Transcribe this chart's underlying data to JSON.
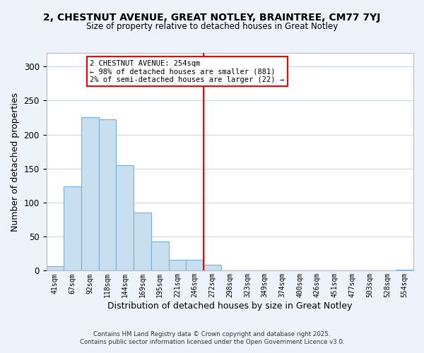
{
  "title_line1": "2, CHESTNUT AVENUE, GREAT NOTLEY, BRAINTREE, CM77 7YJ",
  "title_line2": "Size of property relative to detached houses in Great Notley",
  "xlabel": "Distribution of detached houses by size in Great Notley",
  "ylabel": "Number of detached properties",
  "bin_labels": [
    "41sqm",
    "67sqm",
    "92sqm",
    "118sqm",
    "144sqm",
    "169sqm",
    "195sqm",
    "221sqm",
    "246sqm",
    "272sqm",
    "298sqm",
    "323sqm",
    "349sqm",
    "374sqm",
    "400sqm",
    "426sqm",
    "451sqm",
    "477sqm",
    "503sqm",
    "528sqm",
    "554sqm"
  ],
  "bar_heights": [
    7,
    124,
    226,
    222,
    155,
    86,
    43,
    16,
    16,
    9,
    0,
    0,
    0,
    0,
    0,
    0,
    0,
    0,
    0,
    0,
    1
  ],
  "bar_color": "#c8dff0",
  "bar_edge_color": "#7bafd4",
  "vline_x": 8.5,
  "vline_color": "red",
  "annotation_title": "2 CHESTNUT AVENUE: 254sqm",
  "annotation_line2": "← 98% of detached houses are smaller (881)",
  "annotation_line3": "2% of semi-detached houses are larger (22) →",
  "ylim": [
    0,
    320
  ],
  "yticks": [
    0,
    50,
    100,
    150,
    200,
    250,
    300
  ],
  "footer_line1": "Contains HM Land Registry data © Crown copyright and database right 2025.",
  "footer_line2": "Contains public sector information licensed under the Open Government Licence v3.0.",
  "background_color": "#eef2fb",
  "plot_background": "#ffffff",
  "grid_color": "#d0d8ee"
}
